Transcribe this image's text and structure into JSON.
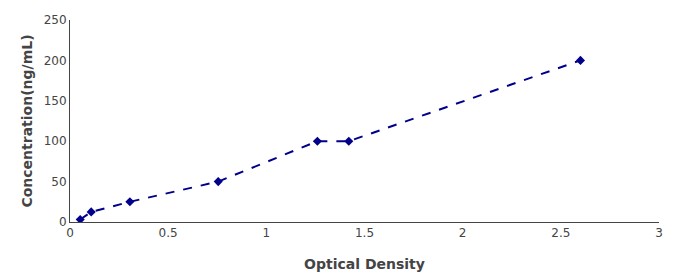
{
  "chart_data": {
    "type": "line",
    "x": [
      0.052,
      0.108,
      0.305,
      0.755,
      1.26,
      1.42,
      2.6
    ],
    "values": [
      3.125,
      12.5,
      25,
      50,
      100,
      100,
      200
    ],
    "color": "#00008B",
    "marker": "diamond",
    "line_style": "dashed",
    "xlabel": "Optical Density",
    "ylabel": "Concentration(ng/mL)",
    "xlim": [
      0,
      3
    ],
    "ylim": [
      0,
      250
    ],
    "xticks": [
      0,
      0.5,
      1,
      1.5,
      2,
      2.5,
      3
    ],
    "yticks": [
      0,
      50,
      100,
      150,
      200,
      250
    ],
    "grid": false
  }
}
